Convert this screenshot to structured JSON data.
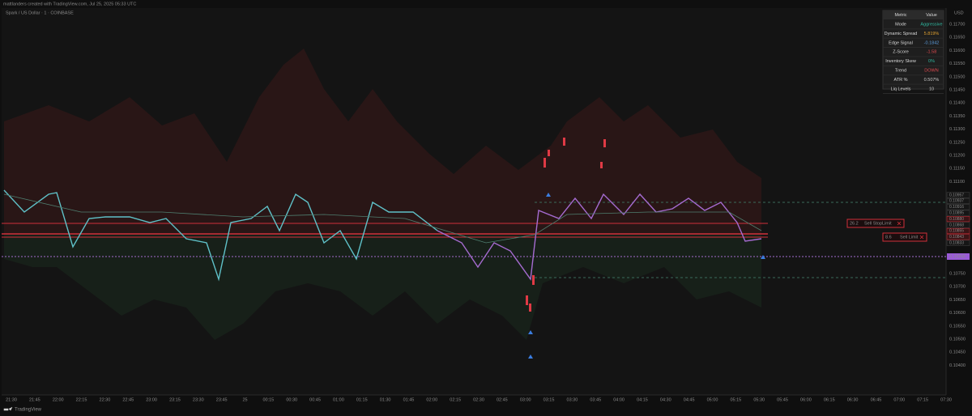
{
  "header": {
    "attribution": "mattlanders created with TradingView.com, Jul 25, 2025 05:33 UTC",
    "symbol": "Spark / US Dollar · 1 · COINBASE"
  },
  "table": {
    "columns": [
      "Metric",
      "Value"
    ],
    "rows": [
      [
        "Mode",
        "Aggressive"
      ],
      [
        "Dynamic Spread",
        "5.819%"
      ],
      [
        "Edge Signal",
        "-0.1842"
      ],
      [
        "Z-Score",
        "-1.58"
      ],
      [
        "Inventory Skew",
        "0%"
      ],
      [
        "Trend",
        "DOWN"
      ],
      [
        "ATR %",
        "0.507%"
      ],
      [
        "Liq Levels",
        "10"
      ]
    ]
  },
  "price_axis": {
    "currency": "USD",
    "upper_labels": [
      "0.11700",
      "0.11650",
      "0.11600",
      "0.11550",
      "0.11500",
      "0.11450",
      "0.11400",
      "0.11350",
      "0.11300",
      "0.11250",
      "0.11200",
      "0.11150",
      "0.11100"
    ],
    "levels": [
      "0.10957",
      "0.10937",
      "0.10916",
      "0.10895",
      "0.10880",
      "0.10868",
      "0.10855",
      "0.10843",
      "0.10833"
    ],
    "last_price": "0.10808",
    "lower_labels": [
      "0.10750",
      "0.10700",
      "0.10650",
      "0.10600",
      "0.10550",
      "0.10500",
      "0.10450",
      "0.10400"
    ]
  },
  "time_axis": {
    "labels": [
      "21:30",
      "21:45",
      "22:00",
      "22:15",
      "22:30",
      "22:45",
      "23:00",
      "23:15",
      "23:30",
      "23:45",
      "25",
      "00:15",
      "00:30",
      "00:45",
      "01:00",
      "01:15",
      "01:30",
      "01:45",
      "02:00",
      "02:15",
      "02:30",
      "02:45",
      "03:00",
      "03:15",
      "03:30",
      "03:45",
      "04:00",
      "04:15",
      "04:30",
      "04:45",
      "05:00",
      "05:15",
      "05:30",
      "05:45",
      "06:00",
      "06:15",
      "06:30",
      "06:45",
      "07:00",
      "07:15",
      "07:30"
    ]
  },
  "orders": [
    {
      "qty": "26.2",
      "label": "Sell StopLimit"
    },
    {
      "qty": "8.6",
      "label": "Sell Limit"
    }
  ],
  "footer": {
    "brand": "TradingView"
  }
}
